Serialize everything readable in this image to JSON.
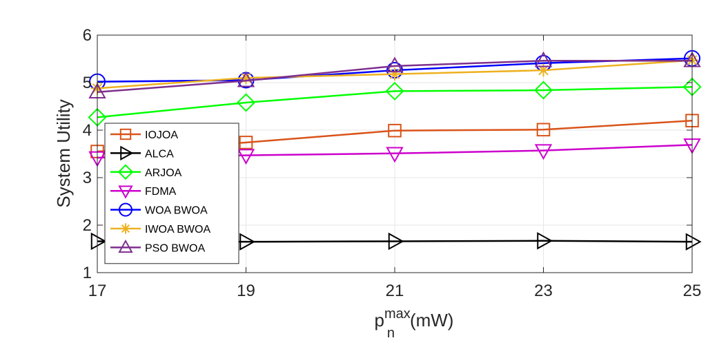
{
  "chart_data": {
    "type": "line",
    "x": [
      17,
      19,
      21,
      23,
      25
    ],
    "xlim": [
      17,
      25
    ],
    "ylim": [
      1,
      6
    ],
    "xticks": [
      17,
      19,
      21,
      23,
      25
    ],
    "yticks": [
      1,
      2,
      3,
      4,
      5,
      6
    ],
    "ylabel": "System Utility",
    "xlabel": {
      "base": "p",
      "subscript": "n",
      "superscript": "max",
      "unit": "(mW)"
    },
    "grid": true,
    "legend_position": "bottom-left",
    "series": [
      {
        "name": "IOJOA",
        "color": "#D95319",
        "marker": "square",
        "values": [
          3.55,
          3.74,
          3.99,
          4.01,
          4.2
        ]
      },
      {
        "name": "ALCA",
        "color": "#000000",
        "marker": "triangle-right",
        "values": [
          1.66,
          1.65,
          1.66,
          1.67,
          1.65
        ]
      },
      {
        "name": "ARJOA",
        "color": "#00FF00",
        "marker": "diamond",
        "values": [
          4.27,
          4.58,
          4.82,
          4.84,
          4.91
        ]
      },
      {
        "name": "FDMA",
        "color": "#CC00CC",
        "marker": "triangle-down",
        "values": [
          3.42,
          3.47,
          3.51,
          3.57,
          3.69
        ]
      },
      {
        "name": "WOA BWOA",
        "color": "#0000FF",
        "marker": "circle",
        "values": [
          5.02,
          5.05,
          5.26,
          5.41,
          5.51
        ]
      },
      {
        "name": "IWOA BWOA",
        "color": "#EDB120",
        "marker": "asterisk",
        "values": [
          4.88,
          5.1,
          5.18,
          5.26,
          5.47
        ]
      },
      {
        "name": "PSO BWOA",
        "color": "#7E2F8E",
        "marker": "triangle-up",
        "values": [
          4.8,
          5.04,
          5.35,
          5.46,
          5.46
        ]
      }
    ]
  }
}
